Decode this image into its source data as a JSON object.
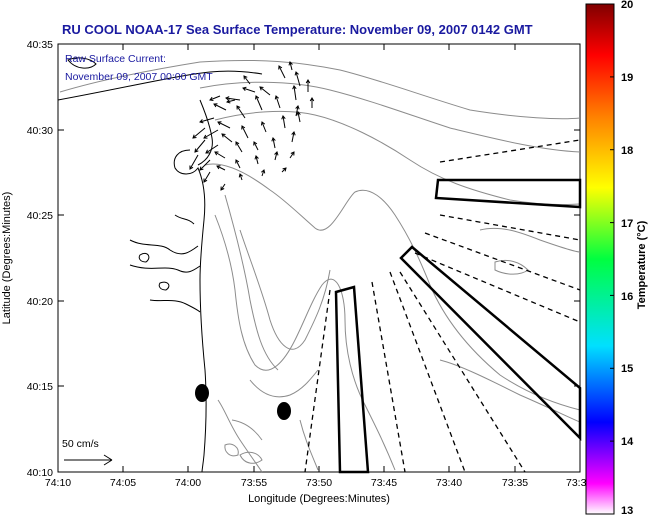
{
  "title": "RU COOL  NOAA-17  Sea Surface Temperature:  November 09, 2007 0142 GMT",
  "annotation": {
    "line1": "Raw Surface Current:",
    "line2": "November 09, 2007 00:00 GMT"
  },
  "axes": {
    "xlabel": "Longitude (Degrees:Minutes)",
    "ylabel": "Latitude (Degrees:Minutes)",
    "xticks": [
      "74:10",
      "74:05",
      "74:00",
      "73:55",
      "73:50",
      "73:45",
      "73:40",
      "73:35",
      "73:3"
    ],
    "yticks": [
      "40:35",
      "40:30",
      "40:25",
      "40:20",
      "40:15",
      "40:10"
    ]
  },
  "scale": {
    "label": "50 cm/s"
  },
  "colorbar": {
    "label": "Temperature (°C)",
    "ticks": [
      "20",
      "19",
      "18",
      "17",
      "16",
      "15",
      "14",
      "13"
    ],
    "range": [
      13,
      20
    ],
    "colors": [
      "#ff00ff",
      "#0000ff",
      "#00ffff",
      "#00ff00",
      "#ffff00",
      "#ff8000",
      "#ff0000",
      "#800000"
    ]
  },
  "map": {
    "land_color": "#ffffff",
    "contour_color": "#8c8c8c",
    "coast_color": "#000000"
  }
}
